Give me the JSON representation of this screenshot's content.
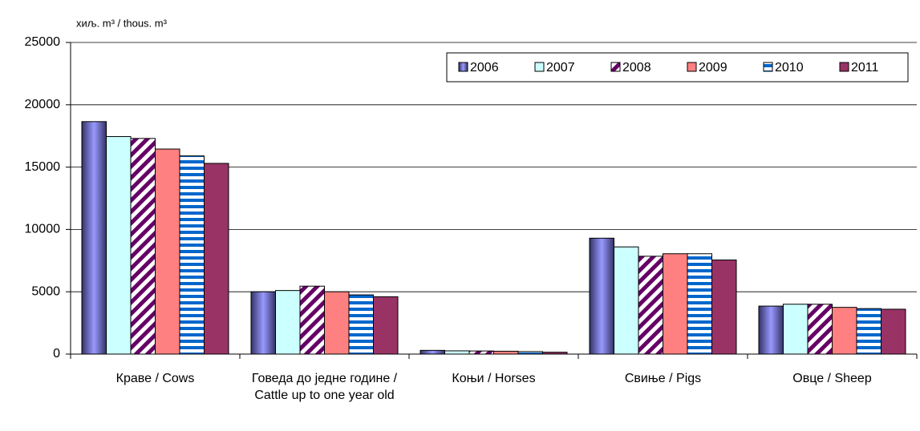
{
  "chart_data": {
    "type": "bar",
    "y_label": "хиљ. m³ / thous. m³",
    "categories": [
      "Краве / Cows",
      "Говеда до једне године / Cattle up to one year old",
      "Коњи / Horses",
      "Свиње / Pigs",
      "Овце / Sheep"
    ],
    "series": [
      {
        "name": "2006",
        "color": "#9999ff",
        "values": [
          18650,
          5000,
          300,
          9300,
          3850
        ]
      },
      {
        "name": "2007",
        "color": "#ccffff",
        "values": [
          17450,
          5100,
          260,
          8600,
          4000
        ]
      },
      {
        "name": "2008",
        "color": "#660066",
        "values": [
          17300,
          5450,
          250,
          7850,
          4000
        ]
      },
      {
        "name": "2009",
        "color": "#ff8080",
        "values": [
          16450,
          5000,
          230,
          8050,
          3750
        ]
      },
      {
        "name": "2010",
        "color": "#0066cc",
        "values": [
          15900,
          4750,
          200,
          8050,
          3650
        ]
      },
      {
        "name": "2011",
        "color": "#993366",
        "values": [
          15300,
          4600,
          150,
          7550,
          3600
        ]
      }
    ],
    "ylim": [
      0,
      25000
    ],
    "yticks": [
      0,
      5000,
      10000,
      15000,
      20000,
      25000
    ],
    "grid": true,
    "legend": "top-right"
  }
}
